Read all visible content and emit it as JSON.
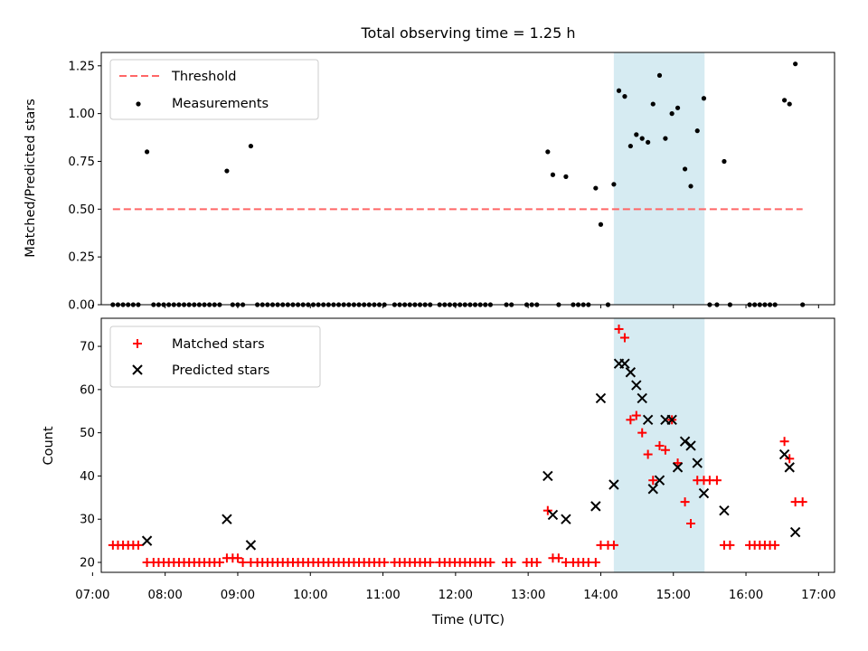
{
  "chart_data": [
    {
      "type": "scatter",
      "title": "Total observing time = 1.25 h",
      "ylabel": "Matched/Predicted stars",
      "xlabel": "",
      "xlim": [
        7.12,
        17.22
      ],
      "ylim": [
        0,
        1.32
      ],
      "x_ticks": [
        7,
        8,
        9,
        10,
        11,
        12,
        13,
        14,
        15,
        16,
        17
      ],
      "y_ticks": [
        0,
        0.25,
        0.5,
        0.75,
        1.0,
        1.25
      ],
      "y_tick_labels": [
        "0.00",
        "0.25",
        "0.50",
        "0.75",
        "1.00",
        "1.25"
      ],
      "highlight_span": [
        14.18,
        15.43
      ],
      "highlight_color": "#add8e6",
      "threshold": {
        "name": "Threshold",
        "value": 0.5,
        "x": [
          7.28,
          16.78
        ],
        "color": "#ff6666"
      },
      "series": [
        {
          "name": "Measurements",
          "color": "#000000",
          "points": [
            [
              7.28,
              0
            ],
            [
              7.35,
              0
            ],
            [
              7.42,
              0
            ],
            [
              7.49,
              0
            ],
            [
              7.56,
              0
            ],
            [
              7.63,
              0
            ],
            [
              7.75,
              0.8
            ],
            [
              7.84,
              0
            ],
            [
              7.91,
              0
            ],
            [
              7.98,
              0
            ],
            [
              8.05,
              0
            ],
            [
              8.12,
              0
            ],
            [
              8.19,
              0
            ],
            [
              8.26,
              0
            ],
            [
              8.33,
              0
            ],
            [
              8.4,
              0
            ],
            [
              8.47,
              0
            ],
            [
              8.54,
              0
            ],
            [
              8.61,
              0
            ],
            [
              8.68,
              0
            ],
            [
              8.75,
              0
            ],
            [
              8.85,
              0.7
            ],
            [
              8.93,
              0
            ],
            [
              9.0,
              0
            ],
            [
              9.07,
              0
            ],
            [
              9.18,
              0.83
            ],
            [
              9.27,
              0
            ],
            [
              9.34,
              0
            ],
            [
              9.41,
              0
            ],
            [
              9.48,
              0
            ],
            [
              9.55,
              0
            ],
            [
              9.62,
              0
            ],
            [
              9.69,
              0
            ],
            [
              9.76,
              0
            ],
            [
              9.83,
              0
            ],
            [
              9.9,
              0
            ],
            [
              9.97,
              0
            ],
            [
              10.04,
              0
            ],
            [
              10.11,
              0
            ],
            [
              10.18,
              0
            ],
            [
              10.25,
              0
            ],
            [
              10.32,
              0
            ],
            [
              10.39,
              0
            ],
            [
              10.46,
              0
            ],
            [
              10.53,
              0
            ],
            [
              10.6,
              0
            ],
            [
              10.67,
              0
            ],
            [
              10.74,
              0
            ],
            [
              10.81,
              0
            ],
            [
              10.88,
              0
            ],
            [
              10.95,
              0
            ],
            [
              11.02,
              0
            ],
            [
              11.16,
              0
            ],
            [
              11.23,
              0
            ],
            [
              11.3,
              0
            ],
            [
              11.37,
              0
            ],
            [
              11.44,
              0
            ],
            [
              11.51,
              0
            ],
            [
              11.58,
              0
            ],
            [
              11.65,
              0
            ],
            [
              11.78,
              0
            ],
            [
              11.85,
              0
            ],
            [
              11.92,
              0
            ],
            [
              11.99,
              0
            ],
            [
              12.06,
              0
            ],
            [
              12.13,
              0
            ],
            [
              12.2,
              0
            ],
            [
              12.27,
              0
            ],
            [
              12.34,
              0
            ],
            [
              12.41,
              0
            ],
            [
              12.48,
              0
            ],
            [
              12.7,
              0
            ],
            [
              12.77,
              0
            ],
            [
              12.98,
              0
            ],
            [
              13.05,
              0
            ],
            [
              13.12,
              0
            ],
            [
              13.27,
              0.8
            ],
            [
              13.34,
              0.68
            ],
            [
              13.42,
              0
            ],
            [
              13.52,
              0.67
            ],
            [
              13.62,
              0
            ],
            [
              13.69,
              0
            ],
            [
              13.76,
              0
            ],
            [
              13.83,
              0
            ],
            [
              13.93,
              0.61
            ],
            [
              14.0,
              0.42
            ],
            [
              14.1,
              0
            ],
            [
              14.18,
              0.63
            ],
            [
              14.25,
              1.12
            ],
            [
              14.33,
              1.09
            ],
            [
              14.41,
              0.83
            ],
            [
              14.49,
              0.89
            ],
            [
              14.57,
              0.87
            ],
            [
              14.65,
              0.85
            ],
            [
              14.72,
              1.05
            ],
            [
              14.81,
              1.2
            ],
            [
              14.89,
              0.87
            ],
            [
              14.98,
              1.0
            ],
            [
              15.06,
              1.03
            ],
            [
              15.16,
              0.71
            ],
            [
              15.24,
              0.62
            ],
            [
              15.33,
              0.91
            ],
            [
              15.42,
              1.08
            ],
            [
              15.5,
              0
            ],
            [
              15.6,
              0
            ],
            [
              15.7,
              0.75
            ],
            [
              15.78,
              0
            ],
            [
              16.05,
              0
            ],
            [
              16.12,
              0
            ],
            [
              16.19,
              0
            ],
            [
              16.26,
              0
            ],
            [
              16.33,
              0
            ],
            [
              16.4,
              0
            ],
            [
              16.53,
              1.07
            ],
            [
              16.6,
              1.05
            ],
            [
              16.68,
              1.26
            ],
            [
              16.78,
              0
            ]
          ]
        }
      ],
      "legend": {
        "position": "upper-left",
        "entries": [
          "Threshold",
          "Measurements"
        ]
      }
    },
    {
      "type": "scatter",
      "title": "",
      "xlabel": "Time (UTC)",
      "ylabel": "Count",
      "xlim": [
        7.12,
        17.22
      ],
      "ylim": [
        17.7,
        76.5
      ],
      "x_ticks": [
        7,
        8,
        9,
        10,
        11,
        12,
        13,
        14,
        15,
        16,
        17
      ],
      "x_tick_labels": [
        "07:00",
        "08:00",
        "09:00",
        "10:00",
        "11:00",
        "12:00",
        "13:00",
        "14:00",
        "15:00",
        "16:00",
        "17:00"
      ],
      "y_ticks": [
        20,
        30,
        40,
        50,
        60,
        70
      ],
      "y_tick_labels": [
        "20",
        "30",
        "40",
        "50",
        "60",
        "70"
      ],
      "highlight_span": [
        14.18,
        15.43
      ],
      "highlight_color": "#add8e6",
      "series": [
        {
          "name": "Matched stars",
          "marker": "plus",
          "color": "#ff0000",
          "points": [
            [
              7.28,
              24
            ],
            [
              7.35,
              24
            ],
            [
              7.42,
              24
            ],
            [
              7.49,
              24
            ],
            [
              7.56,
              24
            ],
            [
              7.63,
              24
            ],
            [
              7.75,
              20
            ],
            [
              7.84,
              20
            ],
            [
              7.91,
              20
            ],
            [
              7.98,
              20
            ],
            [
              8.05,
              20
            ],
            [
              8.12,
              20
            ],
            [
              8.19,
              20
            ],
            [
              8.26,
              20
            ],
            [
              8.33,
              20
            ],
            [
              8.4,
              20
            ],
            [
              8.47,
              20
            ],
            [
              8.54,
              20
            ],
            [
              8.61,
              20
            ],
            [
              8.68,
              20
            ],
            [
              8.75,
              20
            ],
            [
              8.85,
              21
            ],
            [
              8.93,
              21
            ],
            [
              9.0,
              21
            ],
            [
              9.07,
              20
            ],
            [
              9.18,
              20
            ],
            [
              9.27,
              20
            ],
            [
              9.34,
              20
            ],
            [
              9.41,
              20
            ],
            [
              9.48,
              20
            ],
            [
              9.55,
              20
            ],
            [
              9.62,
              20
            ],
            [
              9.69,
              20
            ],
            [
              9.76,
              20
            ],
            [
              9.83,
              20
            ],
            [
              9.9,
              20
            ],
            [
              9.97,
              20
            ],
            [
              10.04,
              20
            ],
            [
              10.11,
              20
            ],
            [
              10.18,
              20
            ],
            [
              10.25,
              20
            ],
            [
              10.32,
              20
            ],
            [
              10.39,
              20
            ],
            [
              10.46,
              20
            ],
            [
              10.53,
              20
            ],
            [
              10.6,
              20
            ],
            [
              10.67,
              20
            ],
            [
              10.74,
              20
            ],
            [
              10.81,
              20
            ],
            [
              10.88,
              20
            ],
            [
              10.95,
              20
            ],
            [
              11.02,
              20
            ],
            [
              11.16,
              20
            ],
            [
              11.23,
              20
            ],
            [
              11.3,
              20
            ],
            [
              11.37,
              20
            ],
            [
              11.44,
              20
            ],
            [
              11.51,
              20
            ],
            [
              11.58,
              20
            ],
            [
              11.65,
              20
            ],
            [
              11.78,
              20
            ],
            [
              11.85,
              20
            ],
            [
              11.92,
              20
            ],
            [
              11.99,
              20
            ],
            [
              12.06,
              20
            ],
            [
              12.13,
              20
            ],
            [
              12.2,
              20
            ],
            [
              12.27,
              20
            ],
            [
              12.34,
              20
            ],
            [
              12.41,
              20
            ],
            [
              12.48,
              20
            ],
            [
              12.7,
              20
            ],
            [
              12.77,
              20
            ],
            [
              12.98,
              20
            ],
            [
              13.05,
              20
            ],
            [
              13.12,
              20
            ],
            [
              13.27,
              32
            ],
            [
              13.34,
              21
            ],
            [
              13.42,
              21
            ],
            [
              13.52,
              20
            ],
            [
              13.62,
              20
            ],
            [
              13.69,
              20
            ],
            [
              13.76,
              20
            ],
            [
              13.83,
              20
            ],
            [
              13.93,
              20
            ],
            [
              14.0,
              24
            ],
            [
              14.1,
              24
            ],
            [
              14.18,
              24
            ],
            [
              14.25,
              74
            ],
            [
              14.33,
              72
            ],
            [
              14.41,
              53
            ],
            [
              14.49,
              54
            ],
            [
              14.57,
              50
            ],
            [
              14.65,
              45
            ],
            [
              14.72,
              39
            ],
            [
              14.81,
              47
            ],
            [
              14.89,
              46
            ],
            [
              14.98,
              53
            ],
            [
              15.06,
              43
            ],
            [
              15.16,
              34
            ],
            [
              15.24,
              29
            ],
            [
              15.33,
              39
            ],
            [
              15.42,
              39
            ],
            [
              15.5,
              39
            ],
            [
              15.6,
              39
            ],
            [
              15.7,
              24
            ],
            [
              15.78,
              24
            ],
            [
              16.05,
              24
            ],
            [
              16.12,
              24
            ],
            [
              16.19,
              24
            ],
            [
              16.26,
              24
            ],
            [
              16.33,
              24
            ],
            [
              16.4,
              24
            ],
            [
              16.53,
              48
            ],
            [
              16.6,
              44
            ],
            [
              16.68,
              34
            ],
            [
              16.78,
              34
            ]
          ]
        },
        {
          "name": "Predicted stars",
          "marker": "x",
          "color": "#000000",
          "points": [
            [
              7.75,
              25
            ],
            [
              8.85,
              30
            ],
            [
              9.18,
              24
            ],
            [
              13.27,
              40
            ],
            [
              13.34,
              31
            ],
            [
              13.52,
              30
            ],
            [
              13.93,
              33
            ],
            [
              14.0,
              58
            ],
            [
              14.18,
              38
            ],
            [
              14.25,
              66
            ],
            [
              14.33,
              66
            ],
            [
              14.41,
              64
            ],
            [
              14.49,
              61
            ],
            [
              14.57,
              58
            ],
            [
              14.65,
              53
            ],
            [
              14.72,
              37
            ],
            [
              14.81,
              39
            ],
            [
              14.89,
              53
            ],
            [
              14.98,
              53
            ],
            [
              15.06,
              42
            ],
            [
              15.16,
              48
            ],
            [
              15.24,
              47
            ],
            [
              15.33,
              43
            ],
            [
              15.42,
              36
            ],
            [
              15.7,
              32
            ],
            [
              16.53,
              45
            ],
            [
              16.6,
              42
            ],
            [
              16.68,
              27
            ]
          ]
        }
      ],
      "legend": {
        "position": "upper-left",
        "entries": [
          "Matched stars",
          "Predicted stars"
        ]
      }
    }
  ]
}
